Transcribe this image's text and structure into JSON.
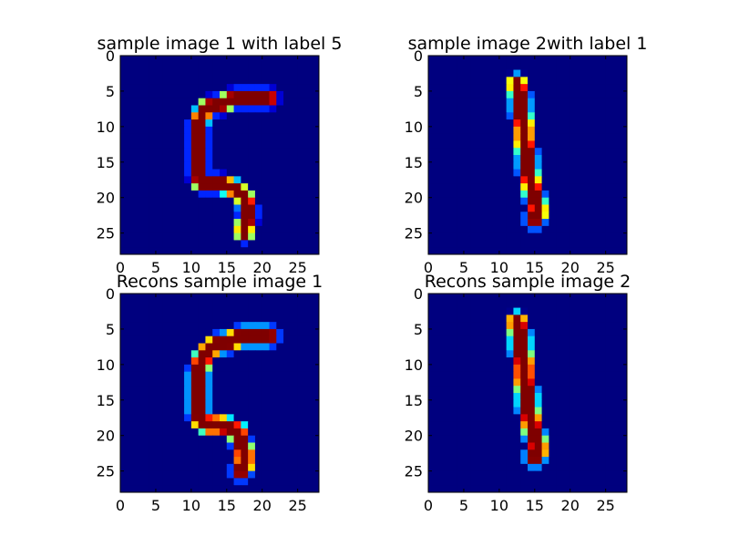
{
  "colormap": {
    "name": "jet",
    "stops": [
      "#00007f",
      "#0000ff",
      "#007fff",
      "#00ffff",
      "#7fff7f",
      "#ffff00",
      "#ff7f00",
      "#ff0000",
      "#7f0000"
    ]
  },
  "chart_data": [
    {
      "type": "heatmap",
      "title": "sample image 1 with label 5",
      "xlim": [
        0,
        28
      ],
      "ylim": [
        28,
        0
      ],
      "xticks": [
        0,
        5,
        10,
        15,
        20,
        25
      ],
      "yticks": [
        0,
        5,
        10,
        15,
        20,
        25
      ],
      "grid": false,
      "size": [
        28,
        28
      ],
      "stroke": [
        [
          21,
          6
        ],
        [
          20,
          6
        ],
        [
          19,
          6
        ],
        [
          18,
          6
        ],
        [
          17,
          6
        ],
        [
          16,
          6
        ],
        [
          15,
          6.5
        ],
        [
          14,
          7
        ],
        [
          13,
          7
        ],
        [
          12,
          7.5
        ],
        [
          11.5,
          8.5
        ],
        [
          11,
          9.5
        ],
        [
          11,
          11
        ],
        [
          11,
          12.5
        ],
        [
          11,
          14
        ],
        [
          11,
          15.5
        ],
        [
          11,
          17
        ],
        [
          11.5,
          18
        ],
        [
          12.5,
          18
        ],
        [
          14,
          18
        ],
        [
          15.5,
          18.5
        ],
        [
          16.5,
          19
        ],
        [
          17.5,
          20
        ],
        [
          18,
          21.5
        ],
        [
          18,
          23
        ],
        [
          17.5,
          24
        ],
        [
          17.5,
          25
        ]
      ],
      "stroke_width": 2.3,
      "stroke_sharpness": 1
    },
    {
      "type": "heatmap",
      "title": "sample image 2with label 1",
      "xlim": [
        0,
        28
      ],
      "ylim": [
        28,
        0
      ],
      "xticks": [
        0,
        5,
        10,
        15,
        20,
        25
      ],
      "yticks": [
        0,
        5,
        10,
        15,
        20,
        25
      ],
      "grid": false,
      "size": [
        28,
        28
      ],
      "stroke": [
        [
          12.5,
          4
        ],
        [
          13,
          6
        ],
        [
          13,
          8
        ],
        [
          13.5,
          10
        ],
        [
          13.5,
          12
        ],
        [
          14,
          14
        ],
        [
          14,
          16
        ],
        [
          14.5,
          18
        ],
        [
          15,
          20
        ],
        [
          15.5,
          22
        ],
        [
          15,
          23
        ]
      ],
      "stroke_width": 2.5,
      "stroke_sharpness": 1
    },
    {
      "type": "heatmap",
      "title": "Recons sample image 1",
      "xlim": [
        0,
        28
      ],
      "ylim": [
        28,
        0
      ],
      "xticks": [
        0,
        5,
        10,
        15,
        20,
        25
      ],
      "yticks": [
        0,
        5,
        10,
        15,
        20,
        25
      ],
      "grid": false,
      "size": [
        28,
        28
      ],
      "stroke": [
        [
          21,
          6
        ],
        [
          20,
          6
        ],
        [
          19,
          6
        ],
        [
          18,
          6
        ],
        [
          17,
          6
        ],
        [
          16,
          6.5
        ],
        [
          15,
          7
        ],
        [
          14,
          7
        ],
        [
          13,
          7.5
        ],
        [
          12,
          8.5
        ],
        [
          11.5,
          9.5
        ],
        [
          11,
          11
        ],
        [
          11,
          12.5
        ],
        [
          11,
          14
        ],
        [
          11,
          15.5
        ],
        [
          11,
          17
        ],
        [
          11.5,
          18
        ],
        [
          12.5,
          18.5
        ],
        [
          14,
          18.5
        ],
        [
          15.5,
          19
        ],
        [
          16.5,
          19.5
        ],
        [
          17,
          21
        ],
        [
          17.5,
          22.5
        ],
        [
          17.5,
          24
        ],
        [
          17,
          25
        ]
      ],
      "stroke_width": 2.4,
      "stroke_sharpness": 0.8
    },
    {
      "type": "heatmap",
      "title": "Recons sample image 2",
      "xlim": [
        0,
        28
      ],
      "ylim": [
        28,
        0
      ],
      "xticks": [
        0,
        5,
        10,
        15,
        20,
        25
      ],
      "yticks": [
        0,
        5,
        10,
        15,
        20,
        25
      ],
      "grid": false,
      "size": [
        28,
        28
      ],
      "stroke": [
        [
          12.5,
          4
        ],
        [
          13,
          6
        ],
        [
          13,
          8
        ],
        [
          13.5,
          10
        ],
        [
          13.5,
          12
        ],
        [
          14,
          14
        ],
        [
          14,
          16
        ],
        [
          14.5,
          18
        ],
        [
          15,
          20
        ],
        [
          15.5,
          22
        ],
        [
          15,
          23
        ]
      ],
      "stroke_width": 2.5,
      "stroke_sharpness": 0.8
    }
  ]
}
